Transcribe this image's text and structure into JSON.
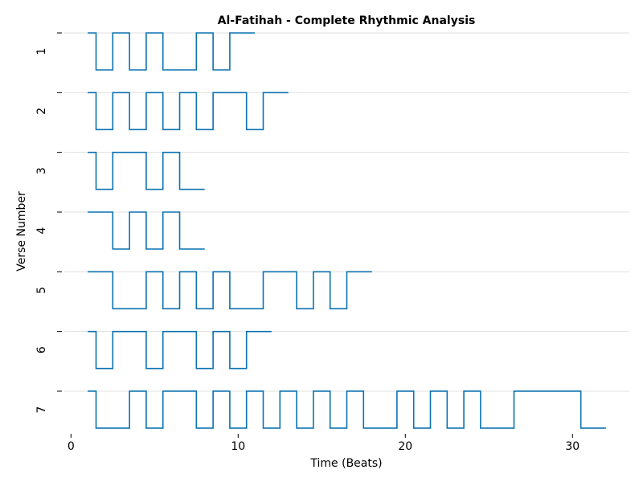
{
  "chart_data": {
    "type": "step",
    "title": "Al-Fatihah - Complete Rhythmic Analysis",
    "xlabel": "Time (Beats)",
    "ylabel": "Verse Number",
    "categories": [
      "1",
      "2",
      "3",
      "4",
      "5",
      "6",
      "7"
    ],
    "color": "#0b72b0",
    "grid": true,
    "xlim": [
      -0.4,
      33.4
    ],
    "xticks": [
      0,
      10,
      20,
      30
    ],
    "ylim": [
      0,
      1
    ],
    "series": [
      {
        "x": [
          1,
          1.5,
          2.5,
          3.5,
          4.5,
          5.5,
          7.5,
          8.5,
          9.5,
          11
        ],
        "values": [
          1,
          0,
          1,
          0,
          1,
          0,
          1,
          0,
          1,
          1
        ]
      },
      {
        "x": [
          1,
          1.5,
          2.5,
          3.5,
          4.5,
          5.5,
          6.5,
          7.5,
          8.5,
          10.5,
          11.5,
          13
        ],
        "values": [
          1,
          0,
          1,
          0,
          1,
          0,
          1,
          0,
          1,
          0,
          1,
          1
        ]
      },
      {
        "x": [
          1,
          1.5,
          2.5,
          4.5,
          5.5,
          6.5,
          8
        ],
        "values": [
          1,
          0,
          1,
          0,
          1,
          0,
          0
        ]
      },
      {
        "x": [
          1,
          2.5,
          3.5,
          4.5,
          5.5,
          6.5,
          8
        ],
        "values": [
          1,
          0,
          1,
          0,
          1,
          0,
          0
        ]
      },
      {
        "x": [
          1,
          2.5,
          4.5,
          5.5,
          6.5,
          7.5,
          8.5,
          9.5,
          11.5,
          13.5,
          14.5,
          15.5,
          16.5,
          18
        ],
        "values": [
          1,
          0,
          1,
          0,
          1,
          0,
          1,
          0,
          1,
          0,
          1,
          0,
          1,
          1
        ]
      },
      {
        "x": [
          1,
          1.5,
          2.5,
          4.5,
          5.5,
          7.5,
          8.5,
          9.5,
          10.5,
          12
        ],
        "values": [
          1,
          0,
          1,
          0,
          1,
          0,
          1,
          0,
          1,
          1
        ]
      },
      {
        "x": [
          1,
          1.5,
          3.5,
          4.5,
          5.5,
          7.5,
          8.5,
          9.5,
          10.5,
          11.5,
          12.5,
          13.5,
          14.5,
          15.5,
          16.5,
          17.5,
          19.5,
          20.5,
          21.5,
          22.5,
          23.5,
          24.5,
          26.5,
          30.5,
          32
        ],
        "values": [
          1,
          0,
          1,
          0,
          1,
          0,
          1,
          0,
          1,
          0,
          1,
          0,
          1,
          0,
          1,
          0,
          1,
          0,
          1,
          0,
          1,
          0,
          1,
          0,
          0
        ]
      }
    ]
  }
}
